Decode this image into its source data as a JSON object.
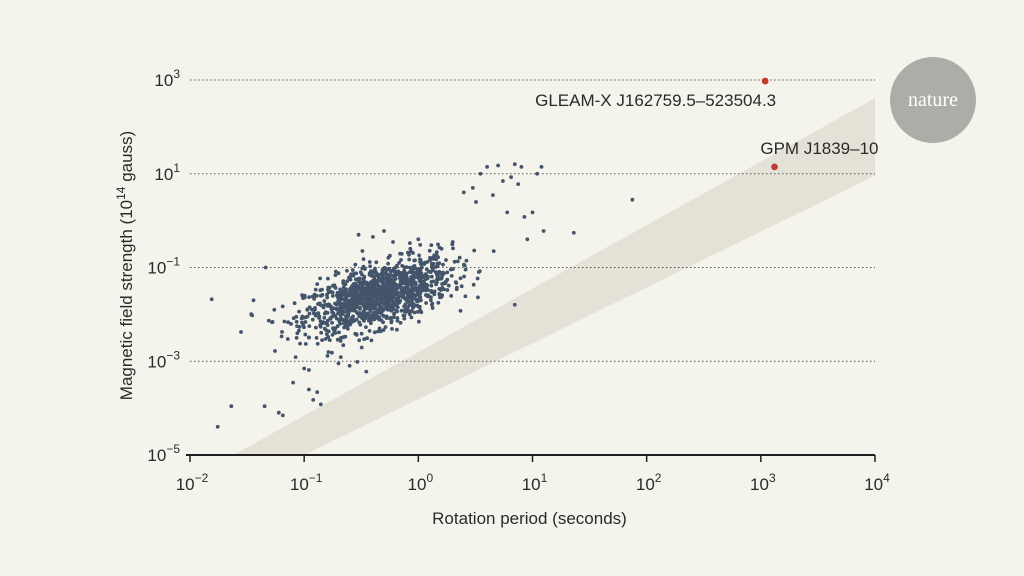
{
  "brand": {
    "logo_text": "nature",
    "logo_color": "#aeaca7"
  },
  "colors": {
    "background": "#f4f3ec",
    "band": "#e4e2d6",
    "points": "#44546b",
    "highlight": "#c23b33",
    "gridline": "#555555"
  },
  "chart_data": {
    "type": "scatter",
    "xlabel": "Rotation period (seconds)",
    "ylabel": "Magnetic field strength (10",
    "ylabel_sup": "14",
    "ylabel_tail": " gauss)",
    "x_scale": "log",
    "y_scale": "log",
    "xlim": [
      0.01,
      10000
    ],
    "ylim": [
      1e-05,
      1000
    ],
    "grid": "horizontal dotted at 10^-3, 10^-1, 10^1, 10^3",
    "x_ticks": [
      {
        "base": "10",
        "exp": "−2",
        "value": 0.01
      },
      {
        "base": "10",
        "exp": "−1",
        "value": 0.1
      },
      {
        "base": "10",
        "exp": "0",
        "value": 1
      },
      {
        "base": "10",
        "exp": "1",
        "value": 10
      },
      {
        "base": "10",
        "exp": "2",
        "value": 100
      },
      {
        "base": "10",
        "exp": "3",
        "value": 1000
      },
      {
        "base": "10",
        "exp": "4",
        "value": 10000
      }
    ],
    "y_ticks": [
      {
        "base": "10",
        "exp": "−5",
        "value": 1e-05
      },
      {
        "base": "10",
        "exp": "−3",
        "value": 0.001
      },
      {
        "base": "10",
        "exp": "−1",
        "value": 0.1
      },
      {
        "base": "10",
        "exp": "1",
        "value": 10
      },
      {
        "base": "10",
        "exp": "3",
        "value": 1000
      }
    ],
    "band": {
      "lower": [
        [
          0.1,
          9.7e-06
        ],
        [
          10000,
          9.1
        ]
      ],
      "upper": [
        [
          0.024,
          9.8e-06
        ],
        [
          10000,
          410
        ]
      ]
    },
    "cluster": {
      "description_count": 1300,
      "center_log_period": -0.35,
      "center_log_field": -1.6,
      "spread_log_period": 0.32,
      "spread_log_field": 0.4
    },
    "points": [
      [
        0.0155,
        0.021
      ],
      [
        0.0175,
        4e-05
      ],
      [
        0.023,
        0.00011
      ],
      [
        0.035,
        0.0095
      ],
      [
        0.036,
        0.02
      ],
      [
        0.045,
        0.00011
      ],
      [
        0.046,
        0.1
      ],
      [
        0.06,
        8e-05
      ],
      [
        0.065,
        7e-05
      ],
      [
        0.08,
        0.00035
      ],
      [
        0.1,
        0.0007
      ],
      [
        0.11,
        0.00065
      ],
      [
        0.11,
        0.00025
      ],
      [
        0.12,
        0.00015
      ],
      [
        0.13,
        0.00022
      ],
      [
        0.14,
        0.00012
      ],
      [
        0.16,
        0.0013
      ],
      [
        0.2,
        0.0009
      ],
      [
        0.22,
        0.0022
      ],
      [
        0.25,
        0.0008
      ],
      [
        0.3,
        0.5
      ],
      [
        0.35,
        0.0006
      ],
      [
        0.4,
        0.45
      ],
      [
        0.5,
        0.6
      ],
      [
        0.6,
        0.35
      ],
      [
        0.85,
        0.25
      ],
      [
        1.0,
        0.4
      ],
      [
        1.3,
        0.3
      ],
      [
        1.6,
        0.25
      ],
      [
        2.0,
        0.35
      ],
      [
        2.5,
        4.0
      ],
      [
        3.0,
        5.0
      ],
      [
        3.2,
        2.5
      ],
      [
        3.5,
        10.0
      ],
      [
        4.0,
        14.0
      ],
      [
        4.5,
        3.5
      ],
      [
        5.0,
        15.0
      ],
      [
        5.5,
        7.0
      ],
      [
        6.0,
        1.5
      ],
      [
        6.5,
        8.5
      ],
      [
        7.0,
        16.0
      ],
      [
        7.5,
        6.0
      ],
      [
        8.0,
        14.0
      ],
      [
        8.5,
        1.2
      ],
      [
        9.0,
        0.4
      ],
      [
        10.0,
        1.5
      ],
      [
        11.0,
        10.0
      ],
      [
        12.0,
        14.0
      ],
      [
        12.5,
        0.6
      ],
      [
        23.0,
        0.55
      ],
      [
        7.0,
        0.016
      ],
      [
        75.0,
        2.8
      ]
    ],
    "highlights": [
      {
        "label": "GLEAM-X J162759.5–523504.3",
        "x": 1091,
        "y": 950
      },
      {
        "label": "GPM J1839–10",
        "x": 1318,
        "y": 14
      }
    ]
  }
}
